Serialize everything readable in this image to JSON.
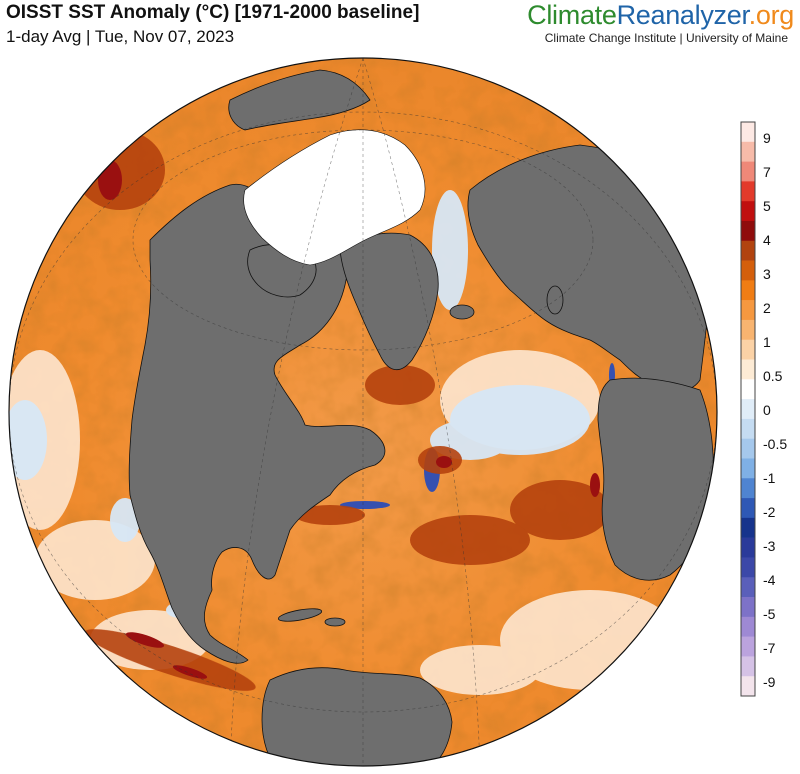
{
  "header": {
    "title": "OISST SST Anomaly (°C) [1971-2000 baseline]",
    "subtitle": "1-day Avg | Tue, Nov 07, 2023"
  },
  "brand": {
    "part1": "Climate",
    "part2": "Reanalyzer",
    "part3": ".org",
    "tagline": "Climate Change Institute | University of Maine",
    "colors": {
      "part1": "#2e8b2e",
      "part2": "#1f64a8",
      "part3": "#f08a1c"
    }
  },
  "map": {
    "projection": "orthographic (North Atlantic centered)",
    "land_color": "#6e6e6e",
    "sea_ice_color": "#ffffff"
  },
  "colorbar": {
    "labels": [
      "9",
      "7",
      "5",
      "4",
      "3",
      "2",
      "1",
      "0.5",
      "0",
      "-0.5",
      "-1",
      "-2",
      "-3",
      "-4",
      "-5",
      "-7",
      "-9"
    ],
    "colors": [
      "#fde9e4",
      "#f7bba9",
      "#ef8878",
      "#e23a2b",
      "#c00f0f",
      "#8f0c0c",
      "#b1430f",
      "#d45f0c",
      "#f07d14",
      "#f59840",
      "#f8b470",
      "#fbd2a6",
      "#fdebd5",
      "#ffffff",
      "#e0edf8",
      "#c5dcf2",
      "#a5c8ec",
      "#7fb0e5",
      "#4f84d1",
      "#2e58b5",
      "#16338c",
      "#2a3a9a",
      "#3c48a8",
      "#5a5fba",
      "#7d72c8",
      "#9e89d4",
      "#bba3de",
      "#d5c2e6",
      "#f3e4ec"
    ]
  }
}
